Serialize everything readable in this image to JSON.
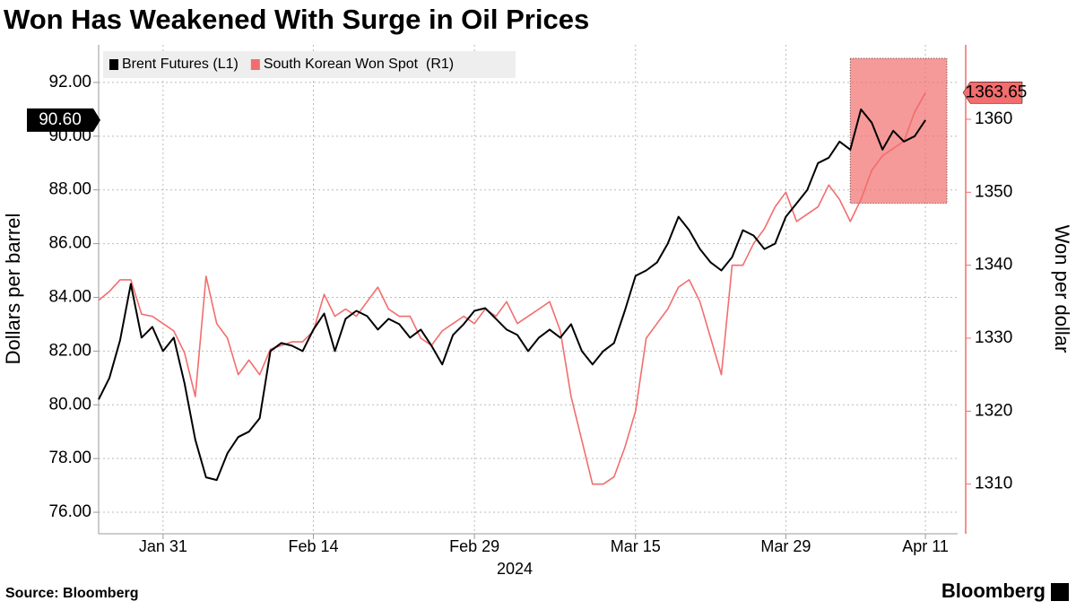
{
  "chart_data": {
    "type": "line",
    "title": "Won Has Weakened With Surge in Oil Prices",
    "source": "Source: Bloomberg",
    "brand": "Bloomberg",
    "ylabel": "Dollars per barrel",
    "y2label": "Won per dollar",
    "xlabel": "2024",
    "x": [
      "2024-01-25",
      "2024-01-26",
      "2024-01-27",
      "2024-01-28",
      "2024-01-29",
      "2024-01-30",
      "2024-01-31",
      "2024-02-01",
      "2024-02-02",
      "2024-02-03",
      "2024-02-04",
      "2024-02-05",
      "2024-02-06",
      "2024-02-07",
      "2024-02-08",
      "2024-02-09",
      "2024-02-10",
      "2024-02-11",
      "2024-02-12",
      "2024-02-13",
      "2024-02-14",
      "2024-02-15",
      "2024-02-16",
      "2024-02-17",
      "2024-02-18",
      "2024-02-19",
      "2024-02-20",
      "2024-02-21",
      "2024-02-22",
      "2024-02-23",
      "2024-02-24",
      "2024-02-25",
      "2024-02-26",
      "2024-02-27",
      "2024-02-28",
      "2024-02-29",
      "2024-03-01",
      "2024-03-02",
      "2024-03-03",
      "2024-03-04",
      "2024-03-05",
      "2024-03-06",
      "2024-03-07",
      "2024-03-08",
      "2024-03-09",
      "2024-03-10",
      "2024-03-11",
      "2024-03-12",
      "2024-03-13",
      "2024-03-14",
      "2024-03-15",
      "2024-03-16",
      "2024-03-17",
      "2024-03-18",
      "2024-03-19",
      "2024-03-20",
      "2024-03-21",
      "2024-03-22",
      "2024-03-23",
      "2024-03-24",
      "2024-03-25",
      "2024-03-26",
      "2024-03-27",
      "2024-03-28",
      "2024-03-29",
      "2024-03-30",
      "2024-03-31",
      "2024-04-01",
      "2024-04-02",
      "2024-04-03",
      "2024-04-04",
      "2024-04-05",
      "2024-04-06",
      "2024-04-07",
      "2024-04-08",
      "2024-04-09",
      "2024-04-10",
      "2024-04-11"
    ],
    "series": [
      {
        "name": "Brent Futures (L1)",
        "color": "#000000",
        "axis": "y",
        "values": [
          80.2,
          81.0,
          82.4,
          84.5,
          82.5,
          82.9,
          82.0,
          82.5,
          80.8,
          78.7,
          77.3,
          77.2,
          78.2,
          78.8,
          79.0,
          79.5,
          82.0,
          82.3,
          82.2,
          82.0,
          82.8,
          83.4,
          82.0,
          83.2,
          83.5,
          83.3,
          82.8,
          83.2,
          83.0,
          82.5,
          82.8,
          82.2,
          81.5,
          82.6,
          83.0,
          83.5,
          83.6,
          83.2,
          82.8,
          82.6,
          82.0,
          82.5,
          82.8,
          82.5,
          83.0,
          82.0,
          81.5,
          82.0,
          82.3,
          83.5,
          84.8,
          85.0,
          85.3,
          86.0,
          87.0,
          86.5,
          85.8,
          85.3,
          85.0,
          85.5,
          86.5,
          86.3,
          85.8,
          86.0,
          87.0,
          87.5,
          88.0,
          89.0,
          89.2,
          89.8,
          89.5,
          91.0,
          90.5,
          89.5,
          90.2,
          89.8,
          90.0,
          90.6
        ]
      },
      {
        "name": "South Korean Won Spot  (R1)",
        "color": "#f26d6d",
        "axis": "y2",
        "values": [
          1335.2,
          1336.4,
          1338,
          1338,
          1333.3,
          1333,
          1332,
          1331,
          1328,
          1322,
          1338.5,
          1332,
          1330,
          1325,
          1327,
          1325,
          1328.5,
          1329,
          1329.5,
          1329.5,
          1331,
          1336,
          1333,
          1334,
          1333,
          1335,
          1337,
          1334,
          1333,
          1333,
          1330,
          1329,
          1331,
          1332,
          1333,
          1332,
          1334,
          1333,
          1335,
          1332,
          1333,
          1334,
          1335,
          1331,
          1322,
          1316,
          1310,
          1310,
          1311,
          1315,
          1320,
          1330,
          1332,
          1334,
          1337,
          1338,
          1335,
          1330,
          1325,
          1340,
          1340,
          1343,
          1345,
          1348,
          1350,
          1346,
          1347,
          1348,
          1351,
          1349,
          1346,
          1349,
          1353,
          1355,
          1356,
          1357,
          1361,
          1363.65
        ]
      }
    ],
    "xlim": [
      "2024-01-25",
      "2024-04-14"
    ],
    "xticks": [
      {
        "value": "2024-01-31",
        "label": "Jan 31"
      },
      {
        "value": "2024-02-14",
        "label": "Feb 14"
      },
      {
        "value": "2024-02-29",
        "label": "Feb 29"
      },
      {
        "value": "2024-03-15",
        "label": "Mar 15"
      },
      {
        "value": "2024-03-29",
        "label": "Mar 29"
      },
      {
        "value": "2024-04-11",
        "label": "Apr 11"
      }
    ],
    "ylim": [
      75.2,
      93.4
    ],
    "yticks": [
      {
        "value": 76,
        "label": "76.00"
      },
      {
        "value": 78,
        "label": "78.00"
      },
      {
        "value": 80,
        "label": "80.00"
      },
      {
        "value": 82,
        "label": "82.00"
      },
      {
        "value": 84,
        "label": "84.00"
      },
      {
        "value": 86,
        "label": "86.00"
      },
      {
        "value": 88,
        "label": "88.00"
      },
      {
        "value": 90,
        "label": "90.00"
      },
      {
        "value": 92,
        "label": "92.00"
      }
    ],
    "y2lim": [
      1303.2,
      1370.2
    ],
    "y2ticks": [
      1310,
      1320,
      1330,
      1340,
      1350,
      1360
    ],
    "grid": true,
    "legend": "top-left",
    "highlight": {
      "x": [
        "2024-04-04",
        "2024-04-13"
      ],
      "y": [
        87.5,
        92.9
      ],
      "color": "#f26d6d"
    },
    "annotations": [
      {
        "text": "90.60",
        "y": 90.6,
        "axis": "y",
        "color": "#000000"
      },
      {
        "text": "1363.65",
        "y": 1363.65,
        "axis": "y2",
        "color": "#f26d6d"
      }
    ]
  }
}
